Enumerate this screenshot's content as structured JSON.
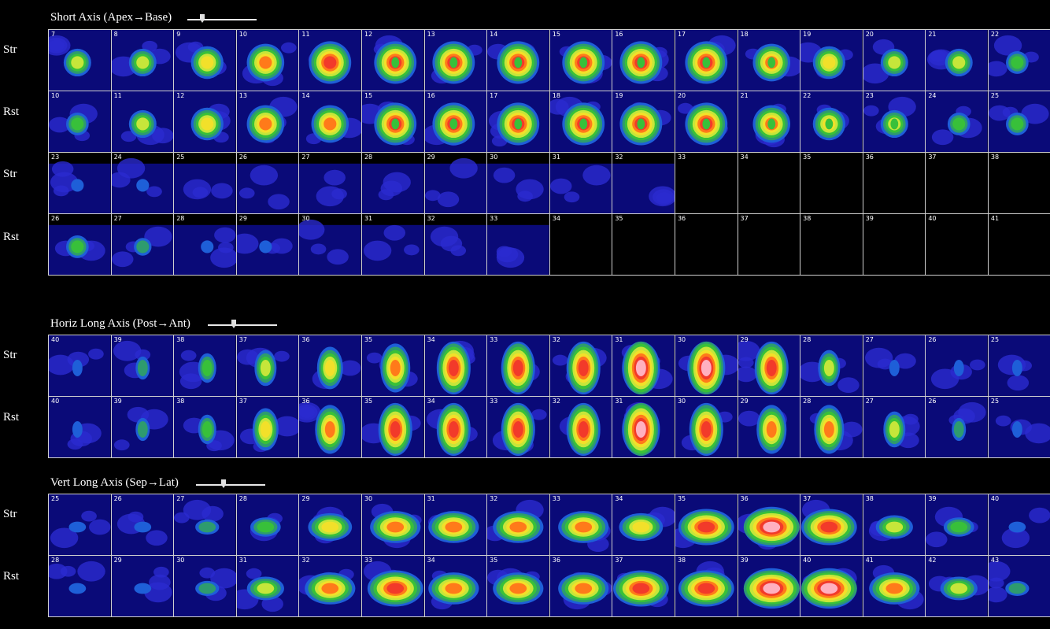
{
  "colors": {
    "background": "#000000",
    "grid_line": "#cfcfcf",
    "label": "#ffffff"
  },
  "colormap": [
    "#0a0a78",
    "#2a2ad0",
    "#1e5fd8",
    "#2e9b6e",
    "#38c03a",
    "#c6e63a",
    "#f2e02a",
    "#ff7a1a",
    "#f23a2a",
    "#ffb0c0"
  ],
  "sections": [
    {
      "title": "Short Axis (Apex→Base)",
      "rows": [
        {
          "label": "Str",
          "frames": [
            "7",
            "8",
            "9",
            "10",
            "11",
            "12",
            "13",
            "14",
            "15",
            "16",
            "17",
            "18",
            "19",
            "20",
            "21",
            "22"
          ]
        },
        {
          "label": "Rst",
          "frames": [
            "10",
            "11",
            "12",
            "13",
            "14",
            "15",
            "16",
            "17",
            "18",
            "19",
            "20",
            "21",
            "22",
            "23",
            "24",
            "25"
          ]
        },
        {
          "label": "Str",
          "frames": [
            "23",
            "24",
            "25",
            "26",
            "27",
            "28",
            "29",
            "30",
            "31",
            "32",
            "33",
            "34",
            "35",
            "36",
            "37",
            "38"
          ]
        },
        {
          "label": "Rst",
          "frames": [
            "26",
            "27",
            "28",
            "29",
            "30",
            "31",
            "32",
            "33",
            "34",
            "35",
            "36",
            "37",
            "38",
            "39",
            "40",
            "41"
          ]
        }
      ]
    },
    {
      "title": "Horiz Long Axis (Post→Ant)",
      "rows": [
        {
          "label": "Str",
          "frames": [
            "40",
            "39",
            "38",
            "37",
            "36",
            "35",
            "34",
            "33",
            "32",
            "31",
            "30",
            "29",
            "28",
            "27",
            "26",
            "25"
          ]
        },
        {
          "label": "Rst",
          "frames": [
            "40",
            "39",
            "38",
            "37",
            "36",
            "35",
            "34",
            "33",
            "32",
            "31",
            "30",
            "29",
            "28",
            "27",
            "26",
            "25"
          ]
        }
      ]
    },
    {
      "title": "Vert Long Axis (Sep→Lat)",
      "rows": [
        {
          "label": "Str",
          "frames": [
            "25",
            "26",
            "27",
            "28",
            "29",
            "30",
            "31",
            "32",
            "33",
            "34",
            "35",
            "36",
            "37",
            "38",
            "39",
            "40"
          ]
        },
        {
          "label": "Rst",
          "frames": [
            "28",
            "29",
            "30",
            "31",
            "32",
            "33",
            "34",
            "35",
            "36",
            "37",
            "38",
            "39",
            "40",
            "41",
            "42",
            "43"
          ]
        }
      ]
    }
  ]
}
